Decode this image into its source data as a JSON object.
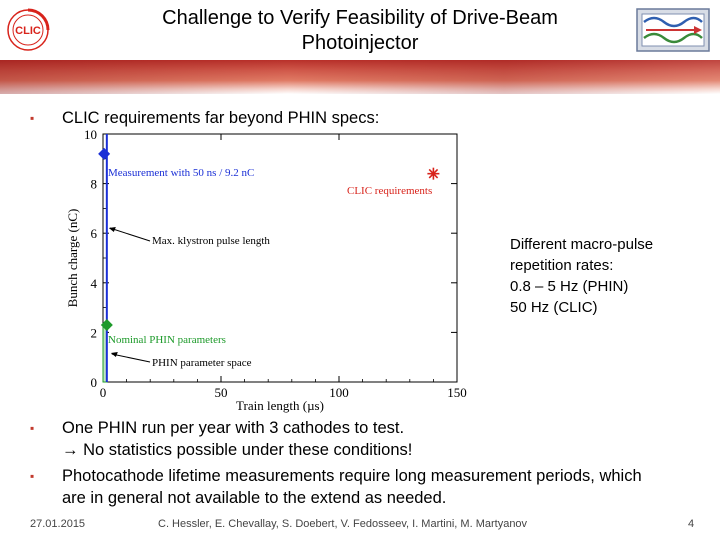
{
  "slide": {
    "title_line1": "Challenge to Verify Feasibility of Drive-Beam",
    "title_line2": "Photoinjector",
    "logo_text": "CLIC",
    "bullets": [
      {
        "line1": "CLIC requirements far beyond PHIN specs:"
      },
      {
        "line1": "One PHIN run per year with 3 cathodes to test.",
        "line2": "→ No statistics possible under these conditions!"
      },
      {
        "line1": "Photocathode lifetime measurements require long measurement periods, which",
        "line2": "are in general not available to the extend as needed."
      }
    ],
    "side_note": [
      "Different macro-pulse",
      "repetition rates:",
      "0.8 – 5 Hz (PHIN)",
      "50 Hz (CLIC)"
    ],
    "footer": {
      "date": "27.01.2015",
      "authors": "C. Hessler, E. Chevallay, S. Doebert, V. Fedosseev, I. Martini, M. Martyanov",
      "page": "4"
    }
  },
  "colors": {
    "accent_red": "#c23a2d",
    "series_blue": "#1a2fd6",
    "series_green": "#1d9a2a",
    "clic_red": "#d8231b"
  },
  "chart_data": {
    "type": "scatter",
    "xlabel": "Train length (µs)",
    "ylabel": "Bunch charge (nC)",
    "xlim": [
      0,
      150
    ],
    "ylim": [
      0,
      10
    ],
    "xticks": [
      "0",
      "50",
      "100",
      "150"
    ],
    "yticks": [
      "0",
      "2",
      "4",
      "6",
      "8",
      "10"
    ],
    "points": [
      {
        "name": "Measurement with 50 ns / 9.2 nC",
        "x": 0.05,
        "y": 9.2,
        "marker": "diamond",
        "color": "#1a2fd6"
      },
      {
        "name": "Nominal PHIN parameters",
        "x": 1.2,
        "y": 2.3,
        "marker": "diamond",
        "color": "#1d9a2a"
      },
      {
        "name": "CLIC requirements",
        "x": 140,
        "y": 8.4,
        "marker": "asterisk",
        "color": "#d8231b"
      }
    ],
    "vertical_line": {
      "name": "Max. klystron pulse length",
      "x": 1.2,
      "color": "#1a2fd6"
    },
    "region": {
      "name": "PHIN parameter space",
      "x": [
        0,
        1.2
      ],
      "y": [
        0,
        2.3
      ],
      "color": "#1d9a2a"
    },
    "annotations": [
      "Measurement with 50 ns / 9.2 nC",
      "CLIC requirements",
      "Max. klystron pulse length",
      "Nominal PHIN parameters",
      "PHIN parameter space"
    ]
  }
}
